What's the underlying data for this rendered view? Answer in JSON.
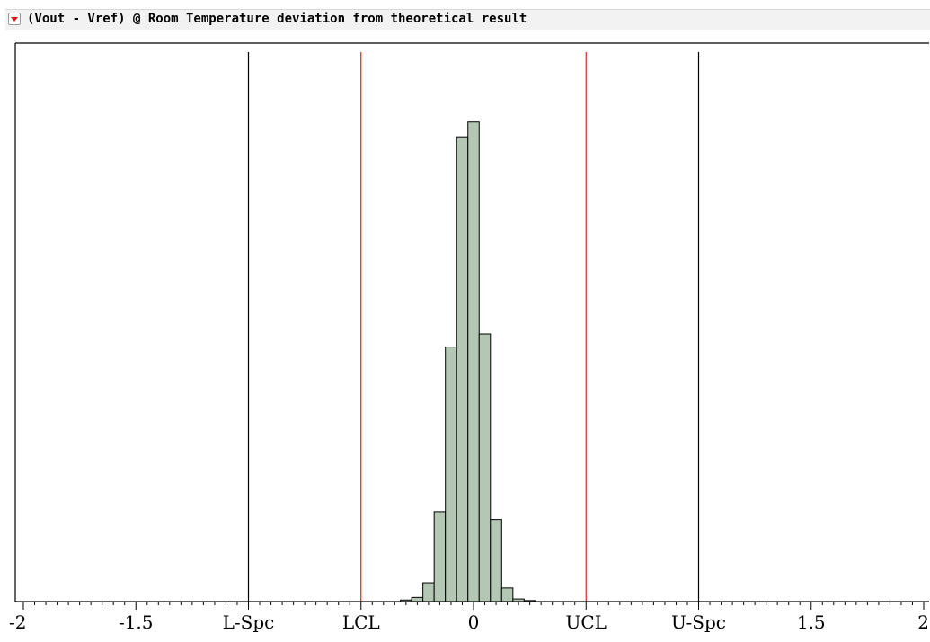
{
  "title": "(Vout - Vref) @ Room Temperature deviation from theoretical result",
  "colors": {
    "bar_fill": "#b4c6b4",
    "bar_stroke": "#000000",
    "spec_line": "#000000",
    "control_line": "#dd2222",
    "toggle_arrow": "#d11a1a"
  },
  "icons": {
    "toggle": "disclosure-triangle-icon"
  },
  "chart_data": {
    "type": "bar",
    "title": "(Vout - Vref) @ Room Temperature deviation from theoretical result",
    "xlim": [
      -2,
      2
    ],
    "ylim": [
      0,
      1
    ],
    "grid": false,
    "bin_width": 0.05,
    "bins": [
      {
        "x": -0.3,
        "value": 0.003
      },
      {
        "x": -0.25,
        "value": 0.008
      },
      {
        "x": -0.2,
        "value": 0.036
      },
      {
        "x": -0.15,
        "value": 0.172
      },
      {
        "x": -0.1,
        "value": 0.487
      },
      {
        "x": -0.05,
        "value": 0.888
      },
      {
        "x": 0.0,
        "value": 0.918
      },
      {
        "x": 0.05,
        "value": 0.512
      },
      {
        "x": 0.1,
        "value": 0.157
      },
      {
        "x": 0.15,
        "value": 0.026
      },
      {
        "x": 0.2,
        "value": 0.005
      },
      {
        "x": 0.25,
        "value": 0.002
      }
    ],
    "reference_lines": [
      {
        "label": "L-Spc",
        "x": -1.0,
        "kind": "spec"
      },
      {
        "label": "LCL",
        "x": -0.5,
        "kind": "control"
      },
      {
        "label": "UCL",
        "x": 0.5,
        "kind": "control"
      },
      {
        "label": "U-Spc",
        "x": 1.0,
        "kind": "spec"
      }
    ],
    "tick_labels": [
      {
        "x": -2,
        "label": "-2"
      },
      {
        "x": -1.5,
        "label": "-1.5"
      },
      {
        "x": -1.0,
        "label": "L-Spc"
      },
      {
        "x": -0.5,
        "label": "LCL"
      },
      {
        "x": 0,
        "label": "0"
      },
      {
        "x": 0.5,
        "label": "UCL"
      },
      {
        "x": 1.0,
        "label": "U-Spc"
      },
      {
        "x": 1.5,
        "label": "1.5"
      },
      {
        "x": 2,
        "label": "2"
      }
    ],
    "minor_tick_step": 0.05
  }
}
